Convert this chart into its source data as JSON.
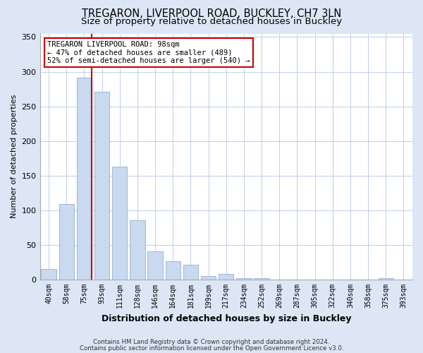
{
  "title": "TREGARON, LIVERPOOL ROAD, BUCKLEY, CH7 3LN",
  "subtitle": "Size of property relative to detached houses in Buckley",
  "xlabel": "Distribution of detached houses by size in Buckley",
  "ylabel": "Number of detached properties",
  "bar_labels": [
    "40sqm",
    "58sqm",
    "75sqm",
    "93sqm",
    "111sqm",
    "128sqm",
    "146sqm",
    "164sqm",
    "181sqm",
    "199sqm",
    "217sqm",
    "234sqm",
    "252sqm",
    "269sqm",
    "287sqm",
    "305sqm",
    "322sqm",
    "340sqm",
    "358sqm",
    "375sqm",
    "393sqm"
  ],
  "bar_values": [
    15,
    109,
    291,
    271,
    163,
    86,
    41,
    27,
    21,
    5,
    8,
    2,
    2,
    0,
    0,
    0,
    0,
    0,
    0,
    2,
    0
  ],
  "bar_color": "#c8d9f0",
  "bar_edge_color": "#9db8d8",
  "vline_color": "#cc0000",
  "annotation_title": "TREGARON LIVERPOOL ROAD: 98sqm",
  "annotation_line1": "← 47% of detached houses are smaller (489)",
  "annotation_line2": "52% of semi-detached houses are larger (540) →",
  "annotation_box_facecolor": "#ffffff",
  "annotation_box_edgecolor": "#cc0000",
  "ylim": [
    0,
    355
  ],
  "yticks": [
    0,
    50,
    100,
    150,
    200,
    250,
    300,
    350
  ],
  "footnote1": "Contains HM Land Registry data © Crown copyright and database right 2024.",
  "footnote2": "Contains public sector information licensed under the Open Government Licence v3.0.",
  "bg_color": "#dce6f5",
  "plot_bg_color": "#ffffff",
  "grid_color": "#c0cfe8",
  "title_fontsize": 10.5,
  "subtitle_fontsize": 9.5,
  "ylabel_fontsize": 8,
  "xlabel_fontsize": 9
}
